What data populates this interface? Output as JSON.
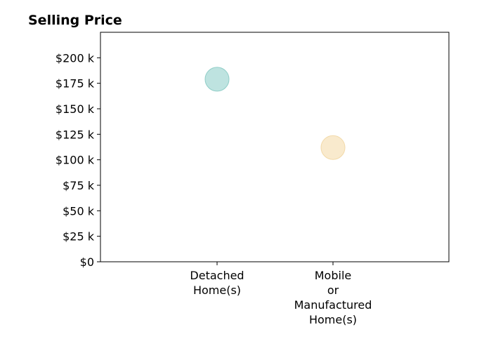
{
  "chart_data": {
    "type": "scatter",
    "title": "Selling Price",
    "xlabel": "",
    "ylabel": "",
    "categories": [
      [
        "Detached",
        "Home(s)"
      ],
      [
        "Mobile",
        "or",
        "Manufactured",
        "Home(s)"
      ]
    ],
    "values": [
      179000,
      112000
    ],
    "point_colors": [
      "#b3dedb",
      "#f8e6c4"
    ],
    "point_stroke_colors": [
      "#8fcdc7",
      "#f2d9a8"
    ],
    "ylim": [
      0,
      225000
    ],
    "yticks": [
      0,
      25000,
      50000,
      75000,
      100000,
      125000,
      150000,
      175000,
      200000
    ],
    "ytick_labels": [
      "$0",
      "$25 k",
      "$50 k",
      "$75 k",
      "$100 k",
      "$125 k",
      "$150 k",
      "$175 k",
      "$200 k"
    ],
    "grid": false,
    "legend": "none"
  }
}
